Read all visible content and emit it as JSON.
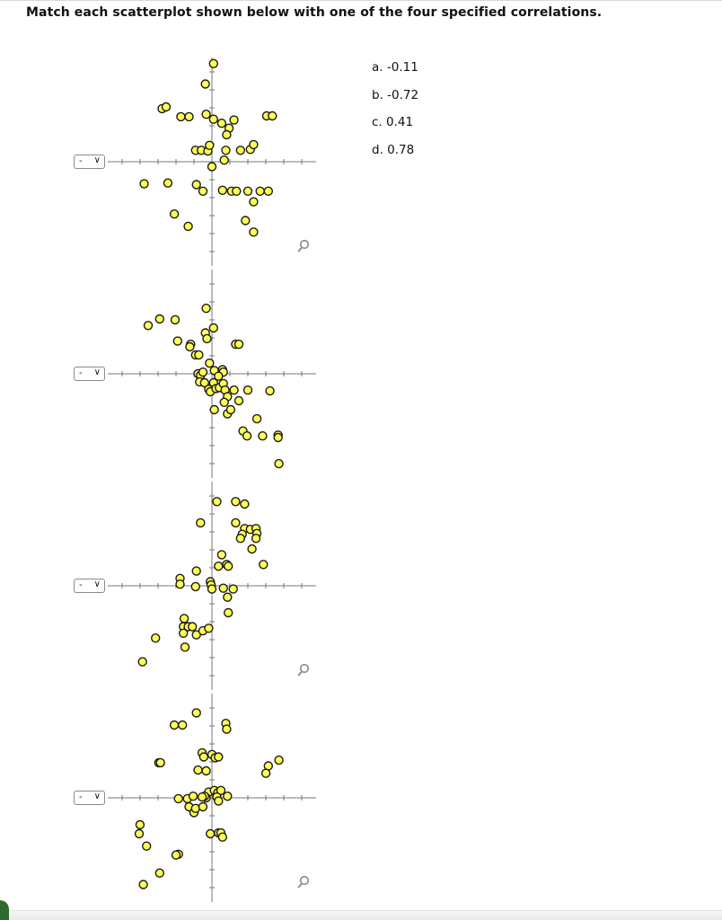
{
  "question": "Match each scatterplot shown below with one of the four specified correlations.",
  "select": {
    "placeholder": "-",
    "icon": "chevron-down-icon"
  },
  "choices": [
    {
      "label": "a. -0.11"
    },
    {
      "label": "b. -0.72"
    },
    {
      "label": "c. 0.41"
    },
    {
      "label": "d. 0.78"
    }
  ],
  "colors": {
    "point_fill": "#ffff55",
    "point_stroke": "#1a1a1a",
    "axis": "#777777",
    "zoom_icon": "#8a8a8a"
  },
  "chart_data": [
    {
      "type": "scatter",
      "axes": {
        "xlim": [
          -1.3,
          1.3
        ],
        "ylim": [
          -1.3,
          1.3
        ],
        "ticks": "unlabeled"
      },
      "points": [
        [
          0.02,
          1.2
        ],
        [
          -0.08,
          0.95
        ],
        [
          -0.61,
          0.65
        ],
        [
          -0.56,
          0.67
        ],
        [
          -0.38,
          0.55
        ],
        [
          -0.28,
          0.55
        ],
        [
          -0.07,
          0.58
        ],
        [
          0.02,
          0.52
        ],
        [
          0.12,
          0.47
        ],
        [
          0.27,
          0.51
        ],
        [
          0.21,
          0.41
        ],
        [
          0.18,
          0.33
        ],
        [
          0.67,
          0.56
        ],
        [
          0.74,
          0.56
        ],
        [
          -0.2,
          0.14
        ],
        [
          -0.13,
          0.14
        ],
        [
          -0.05,
          0.13
        ],
        [
          -0.03,
          0.2
        ],
        [
          0.17,
          0.14
        ],
        [
          0.35,
          0.14
        ],
        [
          0.47,
          0.15
        ],
        [
          0.51,
          0.21
        ],
        [
          0.15,
          0.02
        ],
        [
          0.0,
          -0.06
        ],
        [
          -0.83,
          -0.27
        ],
        [
          -0.54,
          -0.26
        ],
        [
          -0.19,
          -0.28
        ],
        [
          -0.11,
          -0.36
        ],
        [
          0.13,
          -0.35
        ],
        [
          0.24,
          -0.36
        ],
        [
          0.3,
          -0.36
        ],
        [
          0.44,
          -0.36
        ],
        [
          0.59,
          -0.36
        ],
        [
          0.69,
          -0.36
        ],
        [
          0.51,
          -0.49
        ],
        [
          -0.46,
          -0.64
        ],
        [
          -0.29,
          -0.79
        ],
        [
          0.41,
          -0.72
        ],
        [
          0.51,
          -0.86
        ]
      ]
    },
    {
      "type": "scatter",
      "axes": {
        "xlim": [
          -1.3,
          1.3
        ],
        "ylim": [
          -1.3,
          1.3
        ],
        "ticks": "unlabeled"
      },
      "points": [
        [
          -0.78,
          0.59
        ],
        [
          -0.64,
          0.67
        ],
        [
          -0.45,
          0.66
        ],
        [
          -0.42,
          0.4
        ],
        [
          -0.26,
          0.36
        ],
        [
          -0.27,
          0.33
        ],
        [
          -0.2,
          0.23
        ],
        [
          -0.16,
          0.23
        ],
        [
          -0.07,
          0.8
        ],
        [
          -0.08,
          0.5
        ],
        [
          -0.06,
          0.43
        ],
        [
          0.02,
          0.56
        ],
        [
          0.29,
          0.36
        ],
        [
          0.33,
          0.36
        ],
        [
          -0.17,
          0.0
        ],
        [
          -0.14,
          -0.02
        ],
        [
          -0.11,
          0.02
        ],
        [
          -0.03,
          0.13
        ],
        [
          0.03,
          0.04
        ],
        [
          0.13,
          0.05
        ],
        [
          0.14,
          0.02
        ],
        [
          0.08,
          -0.03
        ],
        [
          -0.15,
          -0.1
        ],
        [
          -0.09,
          -0.11
        ],
        [
          0.02,
          -0.11
        ],
        [
          -0.04,
          -0.19
        ],
        [
          -0.02,
          -0.22
        ],
        [
          0.05,
          -0.18
        ],
        [
          0.09,
          -0.17
        ],
        [
          0.14,
          -0.12
        ],
        [
          0.16,
          -0.2
        ],
        [
          0.19,
          -0.28
        ],
        [
          0.15,
          -0.35
        ],
        [
          0.27,
          -0.2
        ],
        [
          0.33,
          -0.33
        ],
        [
          0.44,
          -0.2
        ],
        [
          0.55,
          -0.55
        ],
        [
          0.71,
          -0.21
        ],
        [
          0.19,
          -0.49
        ],
        [
          0.03,
          -0.44
        ],
        [
          0.23,
          -0.44
        ],
        [
          0.38,
          -0.7
        ],
        [
          0.43,
          -0.76
        ],
        [
          0.62,
          -0.76
        ],
        [
          0.81,
          -0.75
        ],
        [
          0.81,
          -0.78
        ],
        [
          0.82,
          -1.1
        ]
      ]
    },
    {
      "type": "scatter",
      "axes": {
        "xlim": [
          -1.3,
          1.3
        ],
        "ylim": [
          -1.3,
          1.3
        ],
        "ticks": "unlabeled"
      },
      "points": [
        [
          0.06,
          1.03
        ],
        [
          0.29,
          1.03
        ],
        [
          0.4,
          1.0
        ],
        [
          -0.14,
          0.77
        ],
        [
          0.29,
          0.77
        ],
        [
          0.4,
          0.7
        ],
        [
          0.47,
          0.69
        ],
        [
          0.54,
          0.7
        ],
        [
          0.55,
          0.64
        ],
        [
          0.37,
          0.63
        ],
        [
          0.35,
          0.58
        ],
        [
          0.54,
          0.58
        ],
        [
          0.49,
          0.45
        ],
        [
          0.12,
          0.38
        ],
        [
          0.08,
          0.24
        ],
        [
          0.18,
          0.26
        ],
        [
          0.2,
          0.24
        ],
        [
          0.63,
          0.26
        ],
        [
          -0.19,
          0.18
        ],
        [
          -0.39,
          0.09
        ],
        [
          -0.39,
          0.02
        ],
        [
          -0.2,
          -0.01
        ],
        [
          -0.02,
          0.05
        ],
        [
          -0.01,
          0.01
        ],
        [
          0.0,
          -0.04
        ],
        [
          0.14,
          -0.03
        ],
        [
          0.26,
          -0.04
        ],
        [
          0.19,
          -0.14
        ],
        [
          -0.34,
          -0.4
        ],
        [
          -0.35,
          -0.5
        ],
        [
          -0.29,
          -0.5
        ],
        [
          -0.24,
          -0.5
        ],
        [
          -0.19,
          -0.6
        ],
        [
          -0.35,
          -0.58
        ],
        [
          -0.11,
          -0.55
        ],
        [
          -0.04,
          -0.52
        ],
        [
          -0.33,
          -0.75
        ],
        [
          0.2,
          -0.33
        ],
        [
          -0.69,
          -0.64
        ],
        [
          -0.85,
          -0.93
        ]
      ]
    },
    {
      "type": "scatter",
      "axes": {
        "xlim": [
          -1.3,
          1.3
        ],
        "ylim": [
          -1.3,
          1.3
        ],
        "ticks": "unlabeled"
      },
      "points": [
        [
          -0.19,
          1.04
        ],
        [
          -0.46,
          0.89
        ],
        [
          -0.36,
          0.89
        ],
        [
          0.17,
          0.91
        ],
        [
          0.18,
          0.84
        ],
        [
          -0.12,
          0.55
        ],
        [
          -0.1,
          0.5
        ],
        [
          0.0,
          0.53
        ],
        [
          0.04,
          0.49
        ],
        [
          0.08,
          0.5
        ],
        [
          -0.65,
          0.43
        ],
        [
          -0.63,
          0.43
        ],
        [
          -0.17,
          0.34
        ],
        [
          -0.07,
          0.33
        ],
        [
          0.69,
          0.39
        ],
        [
          0.82,
          0.46
        ],
        [
          0.66,
          0.3
        ],
        [
          -0.04,
          0.07
        ],
        [
          -0.07,
          0.0
        ],
        [
          0.03,
          0.09
        ],
        [
          0.07,
          0.06
        ],
        [
          0.11,
          0.09
        ],
        [
          0.19,
          0.02
        ],
        [
          -0.41,
          -0.01
        ],
        [
          -0.3,
          -0.01
        ],
        [
          -0.23,
          0.02
        ],
        [
          -0.28,
          -0.11
        ],
        [
          -0.22,
          -0.18
        ],
        [
          -0.2,
          -0.13
        ],
        [
          -0.11,
          -0.11
        ],
        [
          -0.09,
          0.02
        ],
        [
          -0.12,
          0.01
        ],
        [
          0.06,
          0.01
        ],
        [
          0.08,
          -0.04
        ],
        [
          -0.02,
          -0.44
        ],
        [
          0.08,
          -0.43
        ],
        [
          0.11,
          -0.43
        ],
        [
          0.13,
          -0.48
        ],
        [
          -0.88,
          -0.33
        ],
        [
          -0.89,
          -0.44
        ],
        [
          -0.8,
          -0.59
        ],
        [
          -0.41,
          -0.69
        ],
        [
          -0.44,
          -0.7
        ],
        [
          -0.64,
          -0.92
        ],
        [
          -0.84,
          -1.06
        ]
      ]
    }
  ]
}
